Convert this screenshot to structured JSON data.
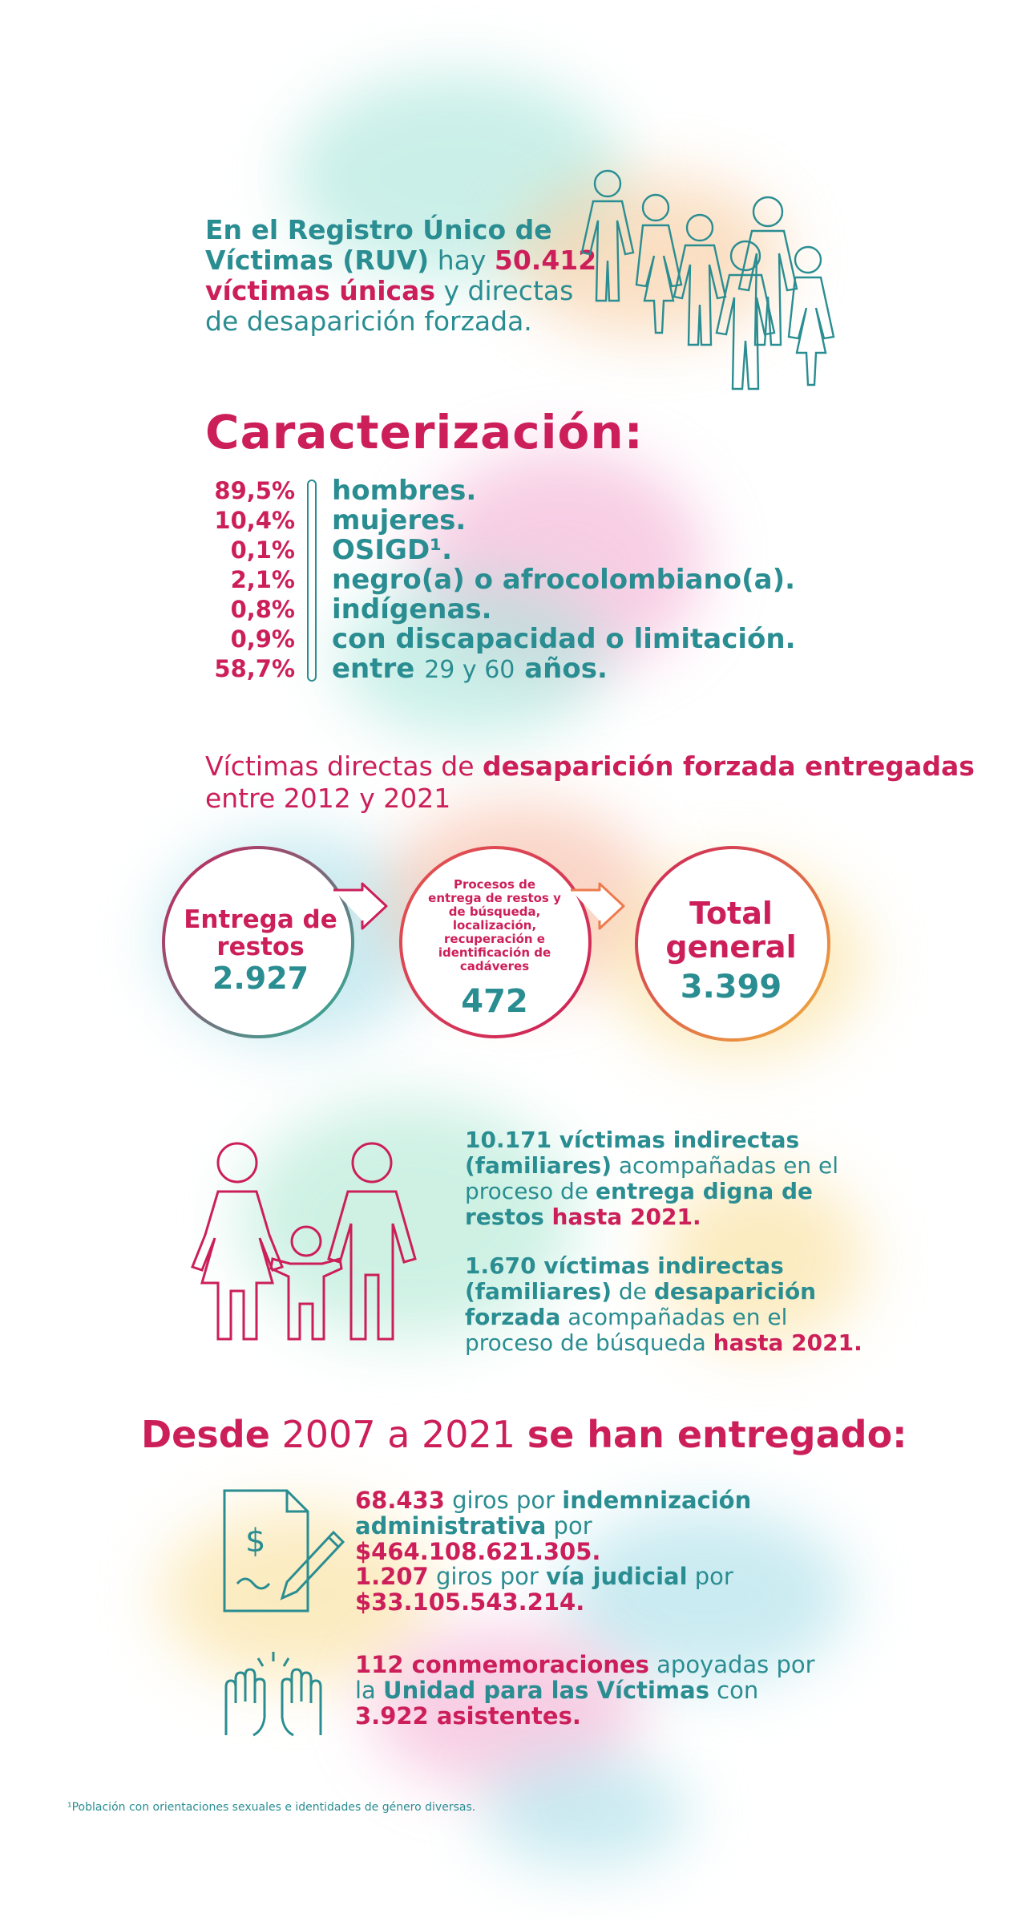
{
  "colors": {
    "teal": "#2a8d91",
    "magenta": "#cc1f5a",
    "orange": "#f2b33b"
  },
  "intro": {
    "p1": "En el Registro Único de Víctimas (RUV)",
    "p2": " hay ",
    "p3": "50.412 víctimas únicas",
    "p4": " y directas de desaparición forzada."
  },
  "caracterizacion": {
    "title": "Caracterización:",
    "rows": [
      {
        "pct": "89,5%",
        "label": "hombres."
      },
      {
        "pct": "10,4%",
        "label": "mujeres."
      },
      {
        "pct": "0,1%",
        "label": "OSIGD¹."
      },
      {
        "pct": "2,1%",
        "label": "negro(a) o afrocolombiano(a)."
      },
      {
        "pct": "0,8%",
        "label": "indígenas."
      },
      {
        "pct": "0,9%",
        "label": "con discapacidad o limitación."
      },
      {
        "pct": "58,7%",
        "label_a": "entre ",
        "label_b": "29 y 60",
        "label_c": " años."
      }
    ]
  },
  "entregadas": {
    "h1": "Víctimas directas de ",
    "h2": "desaparición forzada entregadas",
    "h3": " entre 2012 y 2021",
    "c1_label": "Entrega de restos",
    "c1_value": "2.927",
    "c2_label": "Procesos de entrega de restos y de búsqueda, localización, recuperación e identificación de cadáveres",
    "c2_value": "472",
    "c3_label": "Total general",
    "c3_value": "3.399"
  },
  "familiares": {
    "f1a": "10.171 víctimas indirectas (familiares)",
    "f1b": " acompañadas en el proceso de ",
    "f1c": "entrega digna de restos",
    "f1d": " hasta 2021.",
    "f2a": "1.670 víctimas indirectas (familiares)",
    "f2b": " de ",
    "f2c": "desaparición forzada",
    "f2d": " acompañadas en el proceso de búsqueda ",
    "f2e": "hasta 2021."
  },
  "desde": {
    "t1": "Desde",
    "t2": " 2007 a 2021 ",
    "t3": "se han entregado:",
    "g1a": "68.433",
    "g1b": " giros por ",
    "g1c": "indemnización administrativa",
    "g1d": " por ",
    "g1e": "$464.108.621.305.",
    "g2a": "1.207",
    "g2b": " giros por ",
    "g2c": "vía judicial",
    "g2d": " por ",
    "g2e": "$33.105.543.214.",
    "c1": "112 conmemoraciones",
    "c2": " apoyadas por la ",
    "c3": "Unidad para las Víctimas",
    "c4": " con ",
    "c5": "3.922 asistentes."
  },
  "footnote": "¹Población con orientaciones sexuales e identidades de género diversas."
}
